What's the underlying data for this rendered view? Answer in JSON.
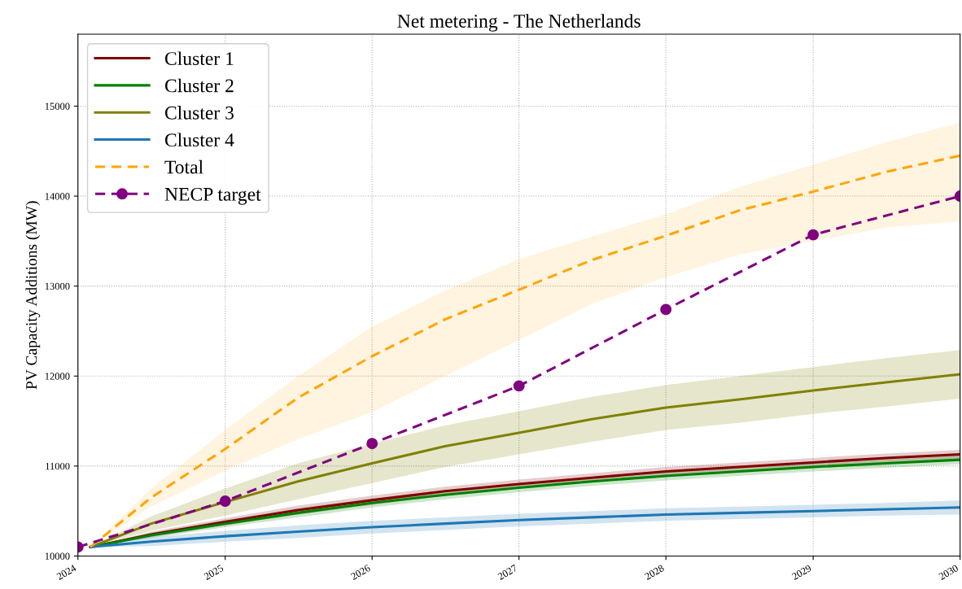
{
  "chart_data": {
    "type": "line",
    "title": "Net metering - The Netherlands",
    "ylabel": "PV Capacity Additions (MW)",
    "x": [
      "2024-02",
      "2024-07",
      "2025-01",
      "2025-07",
      "2026-01",
      "2026-07",
      "2027-01",
      "2027-07",
      "2028-01",
      "2028-07",
      "2029-01",
      "2029-07",
      "2030-01"
    ],
    "series": [
      {
        "name": "Cluster 1",
        "color": "#800000",
        "line_style": "solid",
        "values": [
          10100,
          10240,
          10380,
          10510,
          10620,
          10720,
          10800,
          10870,
          10940,
          10990,
          11040,
          11090,
          11130
        ],
        "lower": [
          10100,
          10210,
          10340,
          10460,
          10570,
          10670,
          10750,
          10820,
          10890,
          10940,
          10990,
          11040,
          11080
        ],
        "upper": [
          10100,
          10270,
          10420,
          10560,
          10670,
          10770,
          10850,
          10920,
          10990,
          11040,
          11090,
          11140,
          11180
        ]
      },
      {
        "name": "Cluster 2",
        "color": "#008000",
        "line_style": "solid",
        "values": [
          10100,
          10230,
          10360,
          10480,
          10590,
          10680,
          10760,
          10830,
          10890,
          10940,
          10990,
          11030,
          11070
        ],
        "lower": [
          10100,
          10200,
          10320,
          10430,
          10540,
          10630,
          10710,
          10780,
          10840,
          10890,
          10940,
          10980,
          11020
        ],
        "upper": [
          10100,
          10260,
          10400,
          10530,
          10640,
          10730,
          10810,
          10880,
          10940,
          10990,
          11040,
          11080,
          11120
        ]
      },
      {
        "name": "Cluster 3",
        "color": "#808000",
        "line_style": "solid",
        "values": [
          10100,
          10360,
          10600,
          10830,
          11030,
          11220,
          11370,
          11520,
          11650,
          11740,
          11840,
          11930,
          12020
        ],
        "lower": [
          10100,
          10280,
          10450,
          10630,
          10810,
          10990,
          11130,
          11270,
          11400,
          11480,
          11580,
          11660,
          11750
        ],
        "upper": [
          10100,
          10440,
          10750,
          11030,
          11250,
          11450,
          11610,
          11770,
          11900,
          12000,
          12100,
          12200,
          12290
        ]
      },
      {
        "name": "Cluster 4",
        "color": "#1f77b4",
        "line_style": "solid",
        "values": [
          10100,
          10160,
          10220,
          10270,
          10320,
          10360,
          10400,
          10430,
          10460,
          10480,
          10500,
          10520,
          10540
        ],
        "lower": [
          10100,
          10110,
          10160,
          10200,
          10250,
          10290,
          10330,
          10360,
          10390,
          10410,
          10430,
          10450,
          10460
        ],
        "upper": [
          10100,
          10210,
          10280,
          10340,
          10390,
          10430,
          10470,
          10500,
          10530,
          10550,
          10570,
          10590,
          10620
        ]
      },
      {
        "name": "Total",
        "color": "#ffa500",
        "line_style": "dashed",
        "values": [
          10100,
          10650,
          11190,
          11760,
          12220,
          12630,
          12960,
          13290,
          13560,
          13840,
          14050,
          14270,
          14450
        ],
        "lower": [
          10100,
          10550,
          10950,
          11300,
          11600,
          12000,
          12400,
          12800,
          13100,
          13350,
          13500,
          13650,
          13720
        ],
        "upper": [
          10100,
          10750,
          11400,
          12000,
          12550,
          12950,
          13300,
          13550,
          13800,
          14100,
          14350,
          14600,
          14820
        ]
      },
      {
        "name": "NECP target",
        "color": "#800080",
        "line_style": "dashed",
        "marker": "circle",
        "x": [
          "2024-01",
          "2025-01",
          "2026-01",
          "2027-01",
          "2028-01",
          "2029-01",
          "2030-01"
        ],
        "values": [
          10100,
          10610,
          11250,
          11890,
          12740,
          13570,
          14000
        ]
      }
    ],
    "xlim": [
      "2024-01",
      "2030-01"
    ],
    "xticks": [
      {
        "value": "2024-01",
        "label": "2024"
      },
      {
        "value": "2025-01",
        "label": "2025"
      },
      {
        "value": "2026-01",
        "label": "2026"
      },
      {
        "value": "2027-01",
        "label": "2027"
      },
      {
        "value": "2028-01",
        "label": "2028"
      },
      {
        "value": "2029-01",
        "label": "2029"
      },
      {
        "value": "2030-01",
        "label": "2030"
      }
    ],
    "ylim": [
      10000,
      15800
    ],
    "yticks": [
      10000,
      11000,
      12000,
      13000,
      14000,
      15000
    ],
    "grid": true,
    "legend": "top left"
  }
}
